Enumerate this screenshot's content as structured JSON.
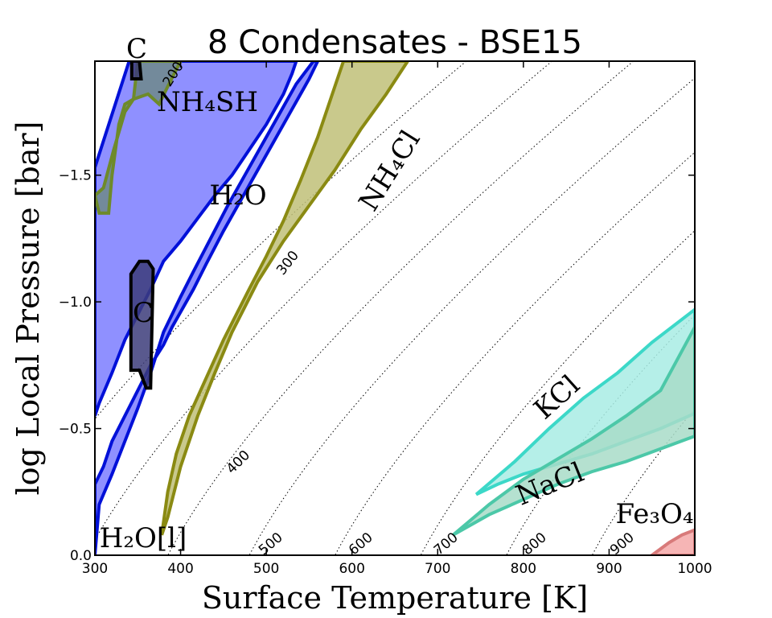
{
  "chart_data": {
    "type": "area",
    "title": "8 Condensates - BSE15",
    "xlabel": "Surface Temperature [K]",
    "ylabel": "log Local Pressure [bar]",
    "xlim": [
      300,
      1000
    ],
    "ylim": [
      0.0,
      1.95
    ],
    "x_ticks": [
      "300",
      "400",
      "500",
      "600",
      "700",
      "800",
      "900",
      "1000"
    ],
    "y_ticks": [
      {
        "value": 0.0,
        "label": "0.0"
      },
      {
        "value": 0.5,
        "label": "−0.5"
      },
      {
        "value": 1.0,
        "label": "−1.0"
      },
      {
        "value": 1.5,
        "label": "−1.5"
      }
    ],
    "isotherms": [
      {
        "label": "200",
        "x0": 210,
        "y_at_300": 1.83
      },
      {
        "label": "300",
        "x0": 310,
        "y_at_300": 0.88
      },
      {
        "label": "400",
        "x0": 405
      },
      {
        "label": "500",
        "x0": 500
      },
      {
        "label": "600",
        "x0": 600
      },
      {
        "label": "700",
        "x0": 700
      },
      {
        "label": "800",
        "x0": 800
      },
      {
        "label": "900",
        "x0": 900
      }
    ],
    "series": [
      {
        "name": "H2O",
        "label": "H₂O",
        "fill": "#7b7cff",
        "edge": "#0010d8",
        "polygon": [
          [
            300,
            1.53
          ],
          [
            340,
            1.95
          ],
          [
            535,
            1.95
          ],
          [
            530,
            1.9
          ],
          [
            520,
            1.82
          ],
          [
            500,
            1.7
          ],
          [
            480,
            1.6
          ],
          [
            460,
            1.5
          ],
          [
            440,
            1.42
          ],
          [
            420,
            1.33
          ],
          [
            400,
            1.24
          ],
          [
            380,
            1.16
          ],
          [
            365,
            1.05
          ],
          [
            350,
            0.95
          ],
          [
            335,
            0.85
          ],
          [
            320,
            0.72
          ],
          [
            305,
            0.6
          ],
          [
            300,
            0.55
          ],
          [
            300,
            1.53
          ]
        ]
      },
      {
        "name": "H2O[l]",
        "label": "H₂O[l]",
        "fill": "#7b7cff",
        "edge": "#0010d8",
        "polygon": [
          [
            300,
            0.0
          ],
          [
            300,
            0.28
          ],
          [
            310,
            0.35
          ],
          [
            320,
            0.45
          ],
          [
            335,
            0.55
          ],
          [
            350,
            0.65
          ],
          [
            365,
            0.75
          ],
          [
            380,
            0.83
          ],
          [
            390,
            0.9
          ],
          [
            400,
            0.96
          ],
          [
            415,
            1.05
          ],
          [
            430,
            1.15
          ],
          [
            450,
            1.28
          ],
          [
            470,
            1.4
          ],
          [
            490,
            1.52
          ],
          [
            510,
            1.64
          ],
          [
            530,
            1.76
          ],
          [
            550,
            1.88
          ],
          [
            560,
            1.95
          ],
          [
            555,
            1.95
          ],
          [
            535,
            1.86
          ],
          [
            515,
            1.74
          ],
          [
            495,
            1.62
          ],
          [
            475,
            1.5
          ],
          [
            455,
            1.38
          ],
          [
            435,
            1.25
          ],
          [
            415,
            1.12
          ],
          [
            400,
            1.02
          ],
          [
            380,
            0.88
          ],
          [
            365,
            0.72
          ],
          [
            350,
            0.58
          ],
          [
            335,
            0.45
          ],
          [
            320,
            0.32
          ],
          [
            305,
            0.2
          ],
          [
            300,
            0.0
          ]
        ]
      },
      {
        "name": "NH4SH",
        "label": "NH₄SH",
        "fill": "#6e8a8a",
        "edge": "#6e8a2a",
        "polygon": [
          [
            300,
            1.42
          ],
          [
            310,
            1.45
          ],
          [
            322,
            1.6
          ],
          [
            335,
            1.75
          ],
          [
            345,
            1.8
          ],
          [
            350,
            1.95
          ],
          [
            400,
            1.95
          ],
          [
            385,
            1.85
          ],
          [
            375,
            1.78
          ],
          [
            362,
            1.82
          ],
          [
            345,
            1.8
          ],
          [
            335,
            1.78
          ],
          [
            328,
            1.7
          ],
          [
            320,
            1.5
          ],
          [
            316,
            1.35
          ],
          [
            305,
            1.35
          ],
          [
            300,
            1.42
          ]
        ]
      },
      {
        "name": "NH4Cl",
        "label": "NH₄Cl",
        "fill": "#c0bf78",
        "edge": "#8a8a12",
        "polygon": [
          [
            378,
            0.08
          ],
          [
            385,
            0.25
          ],
          [
            395,
            0.4
          ],
          [
            410,
            0.55
          ],
          [
            430,
            0.7
          ],
          [
            450,
            0.85
          ],
          [
            465,
            0.95
          ],
          [
            480,
            1.05
          ],
          [
            500,
            1.18
          ],
          [
            520,
            1.32
          ],
          [
            540,
            1.48
          ],
          [
            560,
            1.65
          ],
          [
            580,
            1.85
          ],
          [
            590,
            1.95
          ],
          [
            665,
            1.95
          ],
          [
            640,
            1.82
          ],
          [
            610,
            1.68
          ],
          [
            580,
            1.52
          ],
          [
            550,
            1.38
          ],
          [
            520,
            1.24
          ],
          [
            490,
            1.08
          ],
          [
            460,
            0.88
          ],
          [
            440,
            0.72
          ],
          [
            420,
            0.55
          ],
          [
            400,
            0.35
          ],
          [
            385,
            0.15
          ],
          [
            378,
            0.08
          ]
        ]
      },
      {
        "name": "C",
        "label": "C",
        "fill": "#3c3c7a",
        "edge": "#000000",
        "polygon": [
          [
            342,
            0.73
          ],
          [
            352,
            0.73
          ],
          [
            360,
            0.66
          ],
          [
            365,
            0.66
          ],
          [
            368,
            1.13
          ],
          [
            362,
            1.16
          ],
          [
            352,
            1.16
          ],
          [
            342,
            1.11
          ],
          [
            342,
            0.73
          ]
        ]
      },
      {
        "name": "C (top)",
        "label": "C",
        "fill": "#3c3c7a",
        "edge": "#000000",
        "polygon": [
          [
            343,
            1.95
          ],
          [
            352,
            1.95
          ],
          [
            354,
            1.88
          ],
          [
            343,
            1.88
          ],
          [
            343,
            1.95
          ]
        ]
      },
      {
        "name": "KCl",
        "label": "KCl",
        "fill": "#a8ece4",
        "edge": "#3cd8c8",
        "polygon": [
          [
            745,
            0.24
          ],
          [
            790,
            0.37
          ],
          [
            830,
            0.5
          ],
          [
            870,
            0.62
          ],
          [
            910,
            0.72
          ],
          [
            950,
            0.84
          ],
          [
            1000,
            0.97
          ],
          [
            1000,
            0.56
          ],
          [
            960,
            0.5
          ],
          [
            920,
            0.45
          ],
          [
            880,
            0.4
          ],
          [
            840,
            0.36
          ],
          [
            800,
            0.32
          ],
          [
            770,
            0.28
          ],
          [
            745,
            0.24
          ]
        ]
      },
      {
        "name": "NaCl",
        "label": "NaCl",
        "fill": "#a8dcc8",
        "edge": "#4cc8a8",
        "polygon": [
          [
            718,
            0.08
          ],
          [
            760,
            0.2
          ],
          [
            800,
            0.3
          ],
          [
            840,
            0.38
          ],
          [
            880,
            0.46
          ],
          [
            920,
            0.55
          ],
          [
            960,
            0.65
          ],
          [
            1000,
            0.9
          ],
          [
            1000,
            0.47
          ],
          [
            960,
            0.42
          ],
          [
            920,
            0.37
          ],
          [
            880,
            0.33
          ],
          [
            840,
            0.28
          ],
          [
            800,
            0.22
          ],
          [
            760,
            0.16
          ],
          [
            718,
            0.08
          ]
        ]
      },
      {
        "name": "Fe3O4",
        "label": "Fe₃O₄",
        "fill": "#f4a8a8",
        "edge": "#d87a7a",
        "polygon": [
          [
            950,
            0.0
          ],
          [
            970,
            0.05
          ],
          [
            985,
            0.08
          ],
          [
            1000,
            0.1
          ],
          [
            1000,
            0.0
          ],
          [
            950,
            0.0
          ]
        ]
      }
    ]
  }
}
